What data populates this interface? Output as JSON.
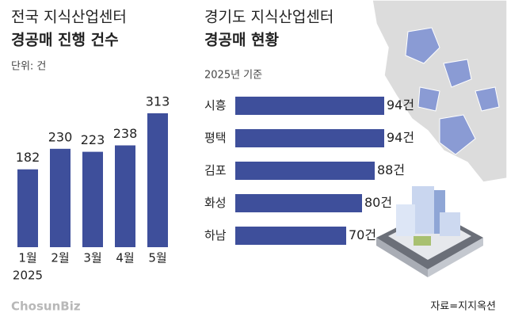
{
  "chart_data": [
    {
      "type": "bar",
      "title": "전국 지식산업센터",
      "subtitle": "경공매 진행 건수",
      "note": "단위: 건",
      "categories": [
        "1월",
        "2월",
        "3월",
        "4월",
        "5월"
      ],
      "year_label": "2025",
      "values": [
        182,
        230,
        223,
        238,
        313
      ],
      "color": "#3e4f9b"
    },
    {
      "type": "hbar",
      "title": "경기도 지식산업센터",
      "subtitle": "경공매 현황",
      "note": "2025년 기준",
      "categories": [
        "시흥",
        "평택",
        "김포",
        "화성",
        "하남"
      ],
      "values": [
        94,
        94,
        88,
        80,
        70
      ],
      "value_labels": [
        "94건",
        "94건",
        "88건",
        "80건",
        "70건"
      ],
      "color": "#3e4f9b"
    }
  ],
  "footer": {
    "logo": "ChosunBiz",
    "source": "자료=지지옥션"
  }
}
